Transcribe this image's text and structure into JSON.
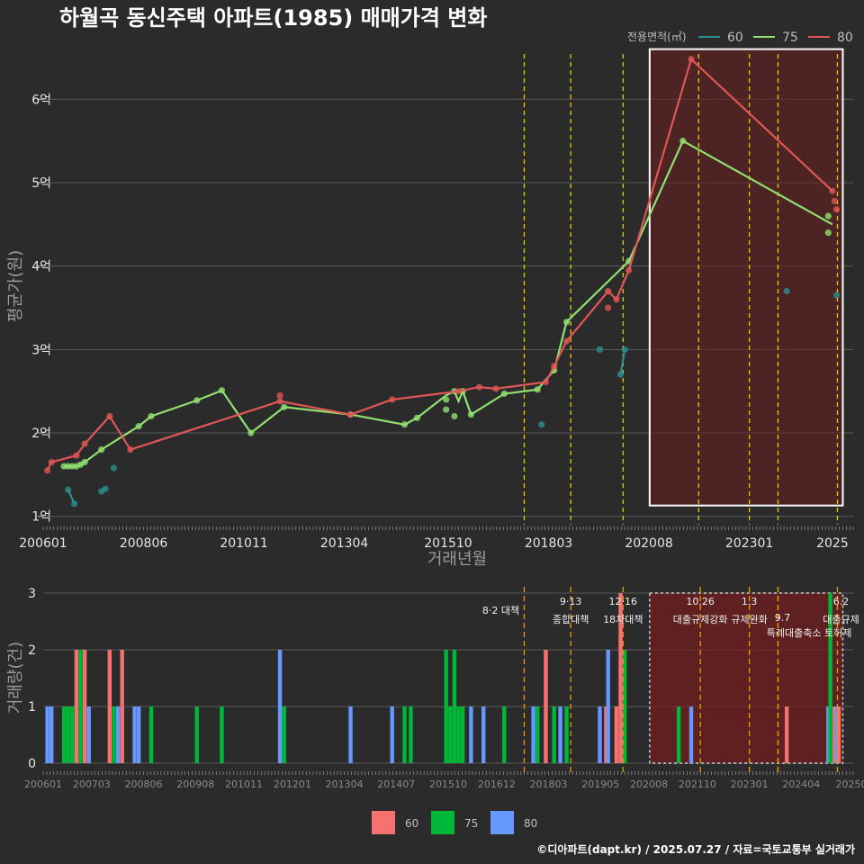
{
  "title": "하월곡 동신주택 아파트(1985) 매매가격 변화",
  "footer": "©디아파트(dapt.kr) / 2025.07.27 / 자료=국토교통부 실거래가",
  "colors": {
    "background": "#2b2b2b",
    "s60_line": "#2a8f8f",
    "s75_line": "#90e070",
    "s80_line": "#e05555",
    "b60": "#f87171",
    "b75": "#00b838",
    "b80": "#6699ff",
    "policy_line": "#e6c80a",
    "policy_line_bottom": "#e69a00",
    "highlight_fill": "#6a1e1e",
    "highlight_stroke": "#ffffff"
  },
  "chart_data": [
    {
      "type": "line",
      "title": "하월곡 동신주택 아파트(1985) 매매가격 변화",
      "xlabel": "거래년월",
      "ylabel": "평균가(원)",
      "ylim": [
        0.9,
        6.65
      ],
      "y_ticks": [
        1,
        2,
        3,
        4,
        5,
        6
      ],
      "y_tick_labels": [
        "1억",
        "2억",
        "3억",
        "4억",
        "5억",
        "6억"
      ],
      "x_ticks": [
        2006.0,
        2008.417,
        2010.833,
        2013.25,
        2015.75,
        2018.167,
        2020.583,
        2023.0,
        2025.0
      ],
      "x_tick_labels": [
        "200601",
        "200806",
        "201011",
        "201304",
        "201510",
        "201803",
        "202008",
        "202301",
        "2025"
      ],
      "legend_title": "전용면적(㎡)",
      "series": [
        {
          "name": "60",
          "segments": [
            [
              [
                2006.6,
                1.32
              ],
              [
                2006.75,
                1.15
              ]
            ],
            [
              [
                2007.4,
                1.3
              ],
              [
                2007.5,
                1.33
              ]
            ],
            [
              [
                2019.9,
                2.7
              ],
              [
                2020.0,
                3.0
              ]
            ]
          ],
          "points": [
            [
              2006.6,
              1.32
            ],
            [
              2006.75,
              1.15
            ],
            [
              2007.4,
              1.3
            ],
            [
              2007.5,
              1.33
            ],
            [
              2007.7,
              1.58
            ],
            [
              2018.0,
              2.1
            ],
            [
              2019.4,
              3.0
            ],
            [
              2019.9,
              2.7
            ],
            [
              2020.0,
              3.0
            ],
            [
              2023.9,
              3.7
            ],
            [
              2025.1,
              3.65
            ]
          ]
        },
        {
          "name": "75",
          "segments": [
            [
              [
                2006.5,
                1.6
              ],
              [
                2006.6,
                1.6
              ],
              [
                2006.7,
                1.6
              ],
              [
                2006.8,
                1.6
              ],
              [
                2006.9,
                1.62
              ],
              [
                2007.0,
                1.65
              ],
              [
                2007.4,
                1.8
              ],
              [
                2008.3,
                2.08
              ],
              [
                2008.6,
                2.2
              ],
              [
                2009.7,
                2.39
              ],
              [
                2010.3,
                2.51
              ],
              [
                2011.0,
                2.0
              ],
              [
                2011.8,
                2.31
              ],
              [
                2013.4,
                2.22
              ],
              [
                2014.7,
                2.1
              ],
              [
                2015.0,
                2.18
              ],
              [
                2015.7,
                2.45
              ],
              [
                2015.9,
                2.5
              ],
              [
                2016.0,
                2.38
              ],
              [
                2016.1,
                2.5
              ],
              [
                2016.3,
                2.22
              ],
              [
                2017.1,
                2.47
              ],
              [
                2017.9,
                2.52
              ],
              [
                2018.3,
                2.75
              ],
              [
                2018.6,
                3.33
              ],
              [
                2020.1,
                4.06
              ],
              [
                2021.4,
                5.5
              ],
              [
                2025.0,
                4.5
              ]
            ]
          ],
          "points": [
            [
              2006.5,
              1.6
            ],
            [
              2006.6,
              1.6
            ],
            [
              2006.7,
              1.6
            ],
            [
              2006.8,
              1.6
            ],
            [
              2006.9,
              1.62
            ],
            [
              2007.0,
              1.65
            ],
            [
              2007.4,
              1.8
            ],
            [
              2008.3,
              2.08
            ],
            [
              2008.6,
              2.2
            ],
            [
              2009.7,
              2.39
            ],
            [
              2010.3,
              2.51
            ],
            [
              2011.0,
              2.0
            ],
            [
              2011.8,
              2.31
            ],
            [
              2013.4,
              2.22
            ],
            [
              2014.7,
              2.1
            ],
            [
              2015.0,
              2.18
            ],
            [
              2015.7,
              2.28
            ],
            [
              2015.7,
              2.4
            ],
            [
              2015.9,
              2.5
            ],
            [
              2015.9,
              2.2
            ],
            [
              2016.1,
              2.5
            ],
            [
              2016.3,
              2.22
            ],
            [
              2017.1,
              2.47
            ],
            [
              2017.9,
              2.52
            ],
            [
              2018.3,
              2.75
            ],
            [
              2018.6,
              3.33
            ],
            [
              2020.1,
              4.06
            ],
            [
              2021.4,
              5.5
            ],
            [
              2024.9,
              4.6
            ],
            [
              2024.9,
              4.4
            ]
          ]
        },
        {
          "name": "80",
          "segments": [
            [
              [
                2006.1,
                1.55
              ],
              [
                2006.2,
                1.65
              ],
              [
                2006.8,
                1.73
              ],
              [
                2007.0,
                1.87
              ],
              [
                2007.6,
                2.2
              ],
              [
                2008.1,
                1.8
              ],
              [
                2011.7,
                2.38
              ],
              [
                2013.4,
                2.22
              ],
              [
                2014.4,
                2.4
              ],
              [
                2016.0,
                2.5
              ],
              [
                2016.5,
                2.55
              ],
              [
                2016.9,
                2.53
              ],
              [
                2018.1,
                2.61
              ],
              [
                2018.3,
                2.8
              ],
              [
                2018.6,
                3.1
              ],
              [
                2019.6,
                3.7
              ],
              [
                2019.8,
                3.6
              ],
              [
                2020.1,
                3.95
              ],
              [
                2021.6,
                6.48
              ],
              [
                2025.0,
                4.9
              ]
            ]
          ],
          "points": [
            [
              2006.1,
              1.55
            ],
            [
              2006.2,
              1.65
            ],
            [
              2006.8,
              1.73
            ],
            [
              2007.0,
              1.87
            ],
            [
              2007.6,
              2.2
            ],
            [
              2008.1,
              1.8
            ],
            [
              2011.7,
              2.45
            ],
            [
              2011.7,
              2.38
            ],
            [
              2013.4,
              2.22
            ],
            [
              2014.4,
              2.4
            ],
            [
              2016.0,
              2.5
            ],
            [
              2016.5,
              2.55
            ],
            [
              2016.9,
              2.53
            ],
            [
              2018.1,
              2.61
            ],
            [
              2018.3,
              2.8
            ],
            [
              2018.6,
              3.1
            ],
            [
              2019.6,
              3.7
            ],
            [
              2019.6,
              3.5
            ],
            [
              2019.8,
              3.6
            ],
            [
              2020.1,
              3.95
            ],
            [
              2021.6,
              6.48
            ],
            [
              2025.0,
              4.9
            ],
            [
              2025.05,
              4.78
            ],
            [
              2025.1,
              4.68
            ]
          ]
        }
      ],
      "policy_dates": [
        2017.58,
        2018.7,
        2019.96,
        2021.78,
        2023.0,
        2023.69,
        2025.12
      ],
      "highlight_x_range": [
        2020.6,
        2025.25
      ],
      "highlight_y_range": [
        1.13,
        6.6
      ]
    },
    {
      "type": "bar",
      "xlabel": "",
      "ylabel": "거래량(건)",
      "ylim": [
        0,
        3
      ],
      "y_ticks": [
        0,
        1,
        2,
        3
      ],
      "x_ticks": [
        2006.0,
        2007.167,
        2008.417,
        2009.667,
        2010.833,
        2012.0,
        2013.25,
        2014.5,
        2015.75,
        2016.917,
        2018.167,
        2019.417,
        2020.583,
        2021.75,
        2023.0,
        2024.25,
        2025.5
      ],
      "x_tick_labels": [
        "200601",
        "200703",
        "200806",
        "200908",
        "201011",
        "201201",
        "201304",
        "201407",
        "201510",
        "201612",
        "201803",
        "201905",
        "202008",
        "202110",
        "202301",
        "202404",
        "20250"
      ],
      "legend": [
        "60",
        "75",
        "80"
      ],
      "bars": [
        {
          "series": "80",
          "x": 2006.1,
          "count": 1
        },
        {
          "series": "80",
          "x": 2006.2,
          "count": 1
        },
        {
          "series": "75",
          "x": 2006.5,
          "count": 1
        },
        {
          "series": "75",
          "x": 2006.6,
          "count": 1
        },
        {
          "series": "75",
          "x": 2006.7,
          "count": 1
        },
        {
          "series": "60",
          "x": 2006.8,
          "count": 2
        },
        {
          "series": "75",
          "x": 2006.9,
          "count": 2
        },
        {
          "series": "60",
          "x": 2007.0,
          "count": 2
        },
        {
          "series": "80",
          "x": 2007.1,
          "count": 1
        },
        {
          "series": "60",
          "x": 2007.6,
          "count": 2
        },
        {
          "series": "75",
          "x": 2007.7,
          "count": 1
        },
        {
          "series": "80",
          "x": 2007.8,
          "count": 1
        },
        {
          "series": "60",
          "x": 2007.9,
          "count": 2
        },
        {
          "series": "80",
          "x": 2008.2,
          "count": 1
        },
        {
          "series": "80",
          "x": 2008.3,
          "count": 1
        },
        {
          "series": "75",
          "x": 2008.6,
          "count": 1
        },
        {
          "series": "75",
          "x": 2009.7,
          "count": 1
        },
        {
          "series": "75",
          "x": 2010.3,
          "count": 1
        },
        {
          "series": "80",
          "x": 2011.7,
          "count": 2
        },
        {
          "series": "75",
          "x": 2011.8,
          "count": 1
        },
        {
          "series": "80",
          "x": 2013.4,
          "count": 1
        },
        {
          "series": "80",
          "x": 2014.4,
          "count": 1
        },
        {
          "series": "75",
          "x": 2014.7,
          "count": 1
        },
        {
          "series": "75",
          "x": 2014.85,
          "count": 1
        },
        {
          "series": "75",
          "x": 2015.7,
          "count": 2
        },
        {
          "series": "75",
          "x": 2015.8,
          "count": 1
        },
        {
          "series": "75",
          "x": 2015.9,
          "count": 2
        },
        {
          "series": "75",
          "x": 2016.0,
          "count": 1
        },
        {
          "series": "75",
          "x": 2016.1,
          "count": 1
        },
        {
          "series": "80",
          "x": 2016.3,
          "count": 1
        },
        {
          "series": "80",
          "x": 2016.6,
          "count": 1
        },
        {
          "series": "75",
          "x": 2017.1,
          "count": 1
        },
        {
          "series": "80",
          "x": 2017.8,
          "count": 1
        },
        {
          "series": "75",
          "x": 2017.9,
          "count": 1
        },
        {
          "series": "60",
          "x": 2018.1,
          "count": 2
        },
        {
          "series": "75",
          "x": 2018.3,
          "count": 1
        },
        {
          "series": "80",
          "x": 2018.45,
          "count": 1
        },
        {
          "series": "75",
          "x": 2018.6,
          "count": 1
        },
        {
          "series": "80",
          "x": 2019.4,
          "count": 1
        },
        {
          "series": "60",
          "x": 2019.55,
          "count": 1
        },
        {
          "series": "80",
          "x": 2019.6,
          "count": 2
        },
        {
          "series": "60",
          "x": 2019.8,
          "count": 1
        },
        {
          "series": "60",
          "x": 2019.9,
          "count": 3
        },
        {
          "series": "75",
          "x": 2020.0,
          "count": 2
        },
        {
          "series": "75",
          "x": 2021.3,
          "count": 1
        },
        {
          "series": "80",
          "x": 2021.6,
          "count": 1
        },
        {
          "series": "60",
          "x": 2023.9,
          "count": 1
        },
        {
          "series": "80",
          "x": 2024.9,
          "count": 1
        },
        {
          "series": "75",
          "x": 2024.95,
          "count": 3
        },
        {
          "series": "60",
          "x": 2025.05,
          "count": 1
        },
        {
          "series": "80",
          "x": 2025.1,
          "count": 1
        },
        {
          "series": "60",
          "x": 2025.15,
          "count": 1
        }
      ],
      "policies": [
        {
          "x": 2017.58,
          "date": "8·2",
          "name": "8·2 대책"
        },
        {
          "x": 2018.7,
          "date": "9·13",
          "name": "종합대책"
        },
        {
          "x": 2019.96,
          "date": "12·16",
          "name": "18차대책"
        },
        {
          "x": 2021.82,
          "date": "10.26",
          "name": "대출규제강화"
        },
        {
          "x": 2023.0,
          "date": "1.3",
          "name": "규제완화"
        },
        {
          "x": 2023.69,
          "date": "",
          "name": "9.7"
        },
        {
          "x": 2023.69,
          "date": "",
          "name": "특례대출축소 토허제"
        },
        {
          "x": 2025.12,
          "date": "6.2",
          "name": "대출규제"
        }
      ],
      "highlight_x_range": [
        2020.6,
        2025.25
      ]
    }
  ]
}
